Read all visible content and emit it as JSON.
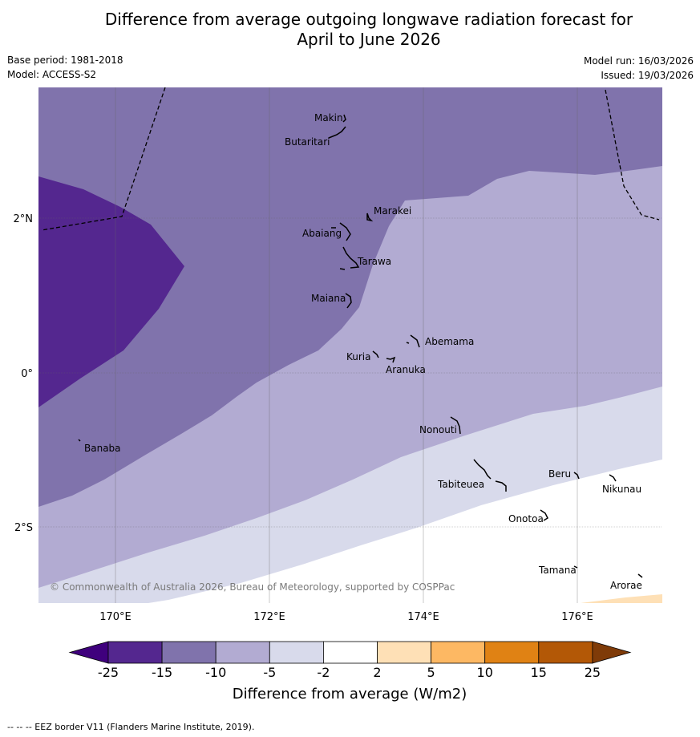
{
  "title_line1": "Difference from average outgoing longwave radiation forecast for",
  "title_line2": "April to June 2026",
  "meta_left": {
    "base_period": "Base period: 1981-2018",
    "model": "Model: ACCESS-S2"
  },
  "meta_right": {
    "model_run": "Model run: 16/03/2026",
    "issued": "Issued: 19/03/2026"
  },
  "axes": {
    "x_ticks": [
      "170°E",
      "172°E",
      "174°E",
      "176°E"
    ],
    "y_ticks": [
      "2°N",
      "0°",
      "2°S"
    ]
  },
  "places": {
    "makin": "Makin",
    "butaritari": "Butaritari",
    "marakei": "Marakei",
    "abaiang": "Abaiang",
    "tarawa": "Tarawa",
    "maiana": "Maiana",
    "abemama": "Abemama",
    "kuria": "Kuria",
    "aranuka": "Aranuka",
    "banaba": "Banaba",
    "nonouti": "Nonouti",
    "tabiteuea": "Tabiteuea",
    "beru": "Beru",
    "nikunau": "Nikunau",
    "onotoa": "Onotoa",
    "tamana": "Tamana",
    "arorae": "Arorae"
  },
  "copyright": "© Commonwealth of Australia 2026, Bureau of Meteorology, supported by COSPPac",
  "colorbar": {
    "labels": [
      "-25",
      "-15",
      "-10",
      "-5",
      "-2",
      "2",
      "5",
      "10",
      "15",
      "25"
    ],
    "title": "Difference from average (W/m2)",
    "colors": [
      "#3f007d",
      "#54278f",
      "#8073ac",
      "#b2abd2",
      "#d8daeb",
      "#ffffff",
      "#fee0b6",
      "#fdb863",
      "#e08214",
      "#b35806",
      "#7f3b08"
    ]
  },
  "footer": "--  --  -- EEZ border V11 (Flanders Marine Institute, 2019)."
}
